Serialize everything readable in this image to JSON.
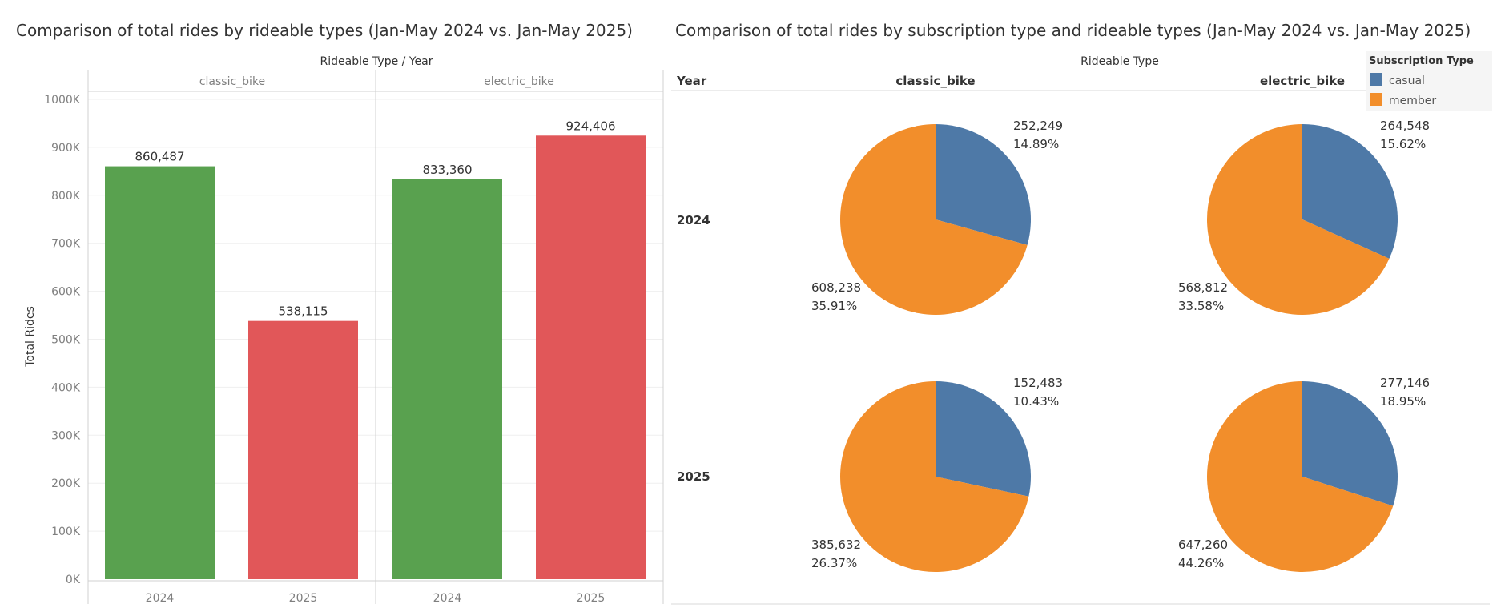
{
  "chart_data": [
    {
      "type": "bar",
      "title": "Comparison of total rides by rideable types (Jan-May 2024 vs. Jan-May 2025)",
      "column_header": "Rideable Type  /  Year",
      "ylabel": "Total Rides",
      "ylim": [
        0,
        1000000
      ],
      "yticks": [
        {
          "value": 0,
          "label": "0K"
        },
        {
          "value": 100000,
          "label": "100K"
        },
        {
          "value": 200000,
          "label": "200K"
        },
        {
          "value": 300000,
          "label": "300K"
        },
        {
          "value": 400000,
          "label": "400K"
        },
        {
          "value": 500000,
          "label": "500K"
        },
        {
          "value": 600000,
          "label": "600K"
        },
        {
          "value": 700000,
          "label": "700K"
        },
        {
          "value": 800000,
          "label": "800K"
        },
        {
          "value": 900000,
          "label": "900K"
        },
        {
          "value": 1000000,
          "label": "1000K"
        }
      ],
      "grid": true,
      "colors": {
        "2024": "#59a14f",
        "2025": "#e15759"
      },
      "panels": [
        {
          "name": "classic_bike",
          "bars": [
            {
              "year": "2024",
              "value": 860487,
              "label": "860,487"
            },
            {
              "year": "2025",
              "value": 538115,
              "label": "538,115"
            }
          ]
        },
        {
          "name": "electric_bike",
          "bars": [
            {
              "year": "2024",
              "value": 833360,
              "label": "833,360"
            },
            {
              "year": "2025",
              "value": 924406,
              "label": "924,406"
            }
          ]
        }
      ]
    },
    {
      "type": "pie",
      "title": "Comparison of total rides by subscription type and rideable types (Jan-May 2024 vs. Jan-May 2025)",
      "column_header": "Rideable Type",
      "row_header": "Year",
      "columns": [
        "classic_bike",
        "electric_bike"
      ],
      "rows": [
        "2024",
        "2025"
      ],
      "legend": {
        "title": "Subscription Type",
        "placement": "top-right",
        "items": [
          {
            "name": "casual",
            "color": "#4e79a7"
          },
          {
            "name": "member",
            "color": "#f28e2b"
          }
        ]
      },
      "pies": [
        {
          "row": "2024",
          "column": "classic_bike",
          "slices": [
            {
              "name": "casual",
              "value": 252249,
              "label": "252,249",
              "pct": "14.89%"
            },
            {
              "name": "member",
              "value": 608238,
              "label": "608,238",
              "pct": "35.91%"
            }
          ]
        },
        {
          "row": "2024",
          "column": "electric_bike",
          "slices": [
            {
              "name": "casual",
              "value": 264548,
              "label": "264,548",
              "pct": "15.62%"
            },
            {
              "name": "member",
              "value": 568812,
              "label": "568,812",
              "pct": "33.58%"
            }
          ]
        },
        {
          "row": "2025",
          "column": "classic_bike",
          "slices": [
            {
              "name": "casual",
              "value": 152483,
              "label": "152,483",
              "pct": "10.43%"
            },
            {
              "name": "member",
              "value": 385632,
              "label": "385,632",
              "pct": "26.37%"
            }
          ]
        },
        {
          "row": "2025",
          "column": "electric_bike",
          "slices": [
            {
              "name": "casual",
              "value": 277146,
              "label": "277,146",
              "pct": "18.95%"
            },
            {
              "name": "member",
              "value": 647260,
              "label": "647,260",
              "pct": "44.26%"
            }
          ]
        }
      ]
    }
  ]
}
